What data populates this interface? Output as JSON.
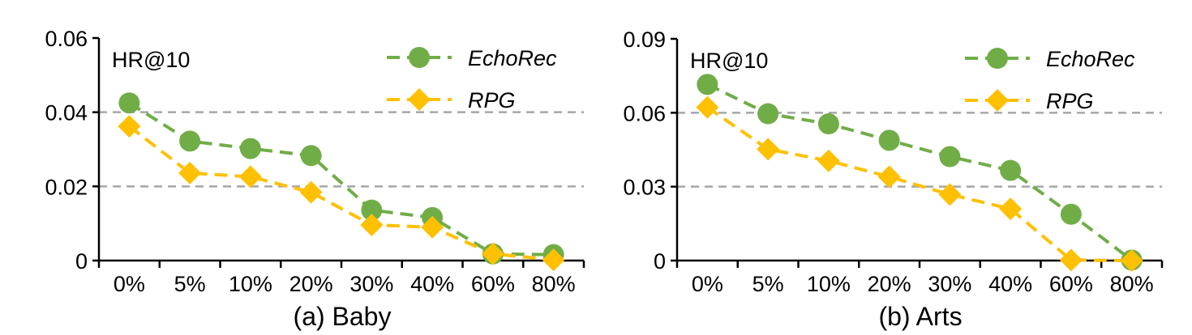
{
  "chart_data": [
    {
      "type": "line",
      "caption": "(a) Baby",
      "metric_label": "HR@10",
      "categories": [
        "0%",
        "5%",
        "10%",
        "20%",
        "30%",
        "40%",
        "60%",
        "80%"
      ],
      "ylim": [
        0,
        0.06
      ],
      "yticks": [
        0,
        0.02,
        0.04,
        0.06
      ],
      "ytick_labels": [
        "0",
        "0.02",
        "0.04",
        "0.06"
      ],
      "grid": "horizontal-dashed",
      "legend_position": "top-right",
      "series": [
        {
          "name": "EchoRec",
          "color": "#70ad47",
          "marker": "circle",
          "values": [
            0.0425,
            0.0322,
            0.0302,
            0.0283,
            0.0136,
            0.0116,
            0.0018,
            0.0016
          ]
        },
        {
          "name": "RPG",
          "color": "#ffc000",
          "marker": "diamond",
          "values": [
            0.0362,
            0.0236,
            0.0226,
            0.0184,
            0.0096,
            0.009,
            0.0018,
            0.0002
          ]
        }
      ]
    },
    {
      "type": "line",
      "caption": "(b) Arts",
      "metric_label": "HR@10",
      "categories": [
        "0%",
        "5%",
        "10%",
        "20%",
        "30%",
        "40%",
        "60%",
        "80%"
      ],
      "ylim": [
        0,
        0.09
      ],
      "yticks": [
        0,
        0.03,
        0.06,
        0.09
      ],
      "ytick_labels": [
        "0",
        "0.03",
        "0.06",
        "0.09"
      ],
      "grid": "horizontal-dashed",
      "legend_position": "top-right",
      "series": [
        {
          "name": "EchoRec",
          "color": "#70ad47",
          "marker": "circle",
          "values": [
            0.0715,
            0.0596,
            0.0555,
            0.0488,
            0.0422,
            0.0366,
            0.0188,
            0.0002
          ]
        },
        {
          "name": "RPG",
          "color": "#ffc000",
          "marker": "diamond",
          "values": [
            0.0622,
            0.0452,
            0.0405,
            0.034,
            0.0268,
            0.021,
            0.0002,
            0.0
          ]
        }
      ]
    }
  ]
}
